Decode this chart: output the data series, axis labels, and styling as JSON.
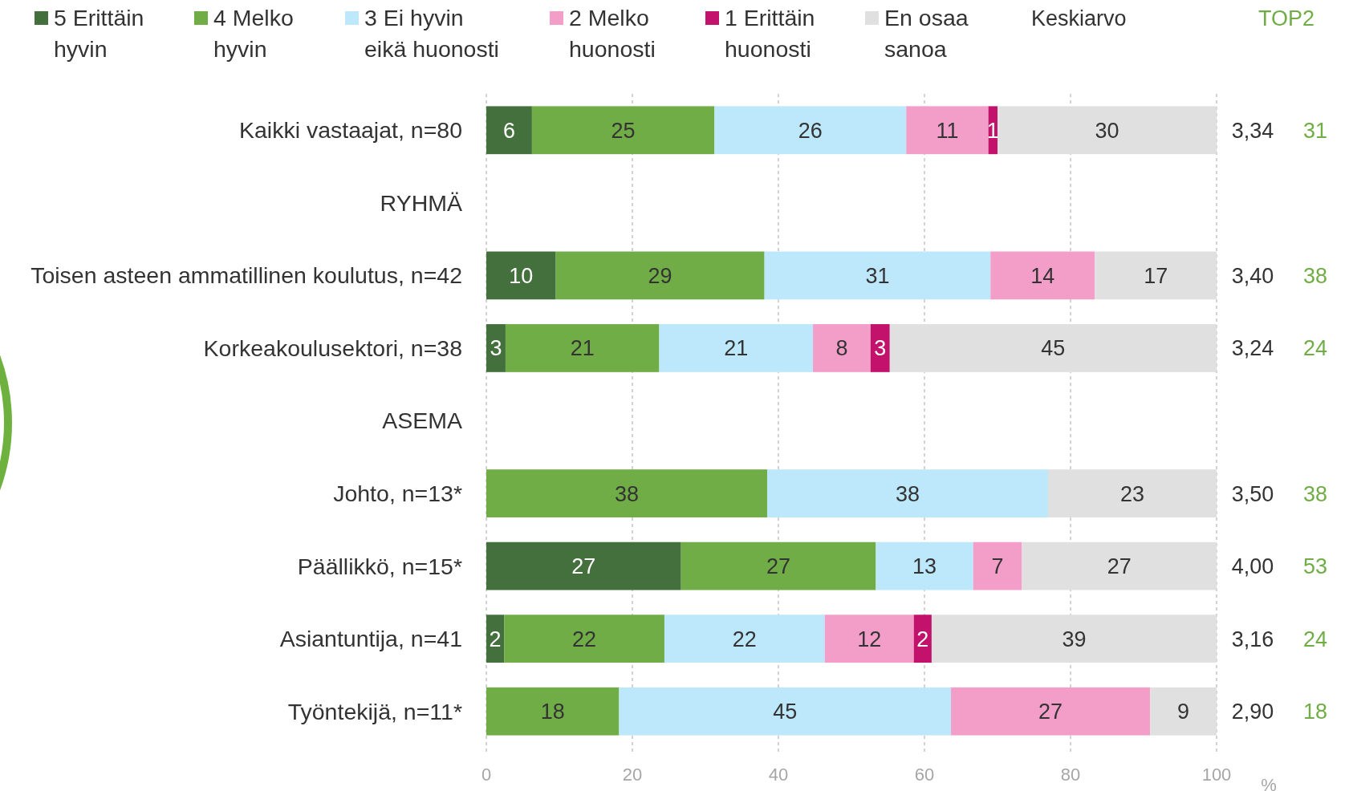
{
  "chart_data": {
    "type": "bar",
    "orientation": "horizontal",
    "stacked": true,
    "legend": "top",
    "grid": "x",
    "xlabel": "%",
    "categories": [
      "Kaikki vastaajat, n=80",
      "RYHMÄ",
      "Toisen asteen ammatillinen koulutus, n=42",
      "Korkeakoulusektori, n=38",
      "ASEMA",
      "Johto, n=13*",
      "Päällikkö, n=15*",
      "Asiantuntija, n=41",
      "Työntekijä, n=11*"
    ],
    "xlim": [
      0,
      100
    ],
    "xticks": [
      0,
      20,
      40,
      60,
      80,
      100
    ],
    "series": [
      {
        "name": "5 Erittäin hyvin",
        "color": "#44703d",
        "values": [
          6.25,
          null,
          9.52,
          2.63,
          null,
          null,
          26.67,
          2.44,
          null
        ],
        "value_labels": [
          "6",
          null,
          "10",
          "3",
          null,
          null,
          "27",
          "2",
          null
        ]
      },
      {
        "name": "4 Melko hyvin",
        "color": "#70ad47",
        "values": [
          25,
          null,
          28.57,
          21.05,
          null,
          38.46,
          26.67,
          21.95,
          18.18
        ],
        "value_labels": [
          "25",
          null,
          "29",
          "21",
          null,
          "38",
          "27",
          "22",
          "18"
        ]
      },
      {
        "name": "3 Ei hyvin eikä huonosti",
        "color": "#bde7fb",
        "values": [
          26.25,
          null,
          30.95,
          21.05,
          null,
          38.46,
          13.33,
          21.95,
          45.45
        ],
        "value_labels": [
          "26",
          null,
          "31",
          "21",
          null,
          "38",
          "13",
          "22",
          "45"
        ]
      },
      {
        "name": "2 Melko huonosti",
        "color": "#f29ec8",
        "values": [
          11.25,
          null,
          14.29,
          7.89,
          null,
          null,
          6.67,
          12.2,
          27.27
        ],
        "value_labels": [
          "11",
          null,
          "14",
          "8",
          null,
          null,
          "7",
          "12",
          "27"
        ]
      },
      {
        "name": "1 Erittäin huonosti",
        "color": "#c2126b",
        "values": [
          1.25,
          null,
          null,
          2.63,
          null,
          null,
          null,
          2.44,
          null
        ],
        "value_labels": [
          "1",
          null,
          null,
          "3",
          null,
          null,
          null,
          "2",
          null
        ]
      },
      {
        "name": "En osaa sanoa",
        "color": "#e0e0e0",
        "values": [
          30,
          null,
          16.67,
          44.74,
          null,
          23.08,
          26.67,
          39.02,
          9.09
        ],
        "value_labels": [
          "30",
          null,
          "17",
          "45",
          null,
          "23",
          "27",
          "39",
          "9"
        ]
      }
    ],
    "annotations": [
      "Keskiarvo",
      "TOP2",
      "3,34",
      "31",
      "3,40",
      "38",
      "3,24",
      "24",
      "3,50",
      "38",
      "4,00",
      "53",
      "3,16",
      "24",
      "2,90",
      "18"
    ]
  }
}
